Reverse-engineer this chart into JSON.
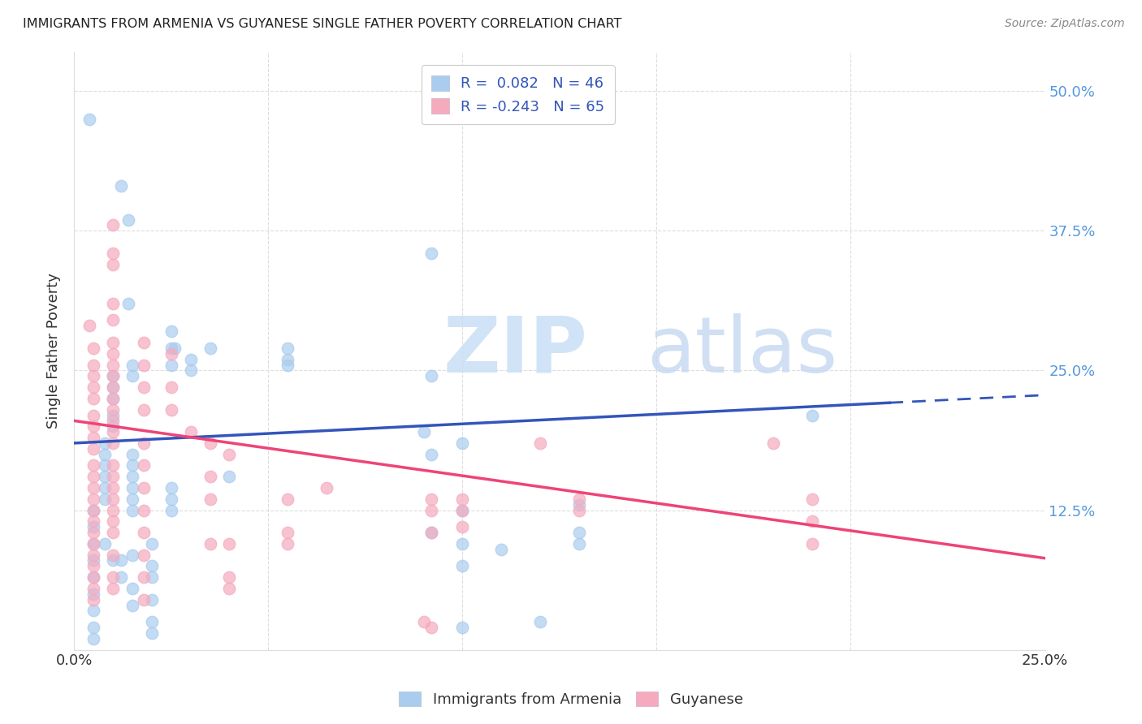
{
  "title": "IMMIGRANTS FROM ARMENIA VS GUYANESE SINGLE FATHER POVERTY CORRELATION CHART",
  "source": "Source: ZipAtlas.com",
  "ylabel": "Single Father Poverty",
  "ytick_labels": [
    "50.0%",
    "37.5%",
    "25.0%",
    "12.5%"
  ],
  "ytick_values": [
    0.5,
    0.375,
    0.25,
    0.125
  ],
  "xlim": [
    0.0,
    0.25
  ],
  "ylim": [
    0.0,
    0.535
  ],
  "armenia_color": "#aaccee",
  "guyanese_color": "#f5aabe",
  "armenia_line_color": "#3355bb",
  "guyanese_line_color": "#ee4477",
  "armenia_line_solid_end": 0.21,
  "armenia_line_x0": 0.0,
  "armenia_line_y0": 0.185,
  "armenia_line_x1": 0.25,
  "armenia_line_y1": 0.228,
  "guyanese_line_x0": 0.0,
  "guyanese_line_y0": 0.205,
  "guyanese_line_x1": 0.25,
  "guyanese_line_y1": 0.082,
  "armenia_scatter": [
    [
      0.004,
      0.475
    ],
    [
      0.012,
      0.415
    ],
    [
      0.014,
      0.385
    ],
    [
      0.014,
      0.31
    ],
    [
      0.025,
      0.285
    ],
    [
      0.025,
      0.27
    ],
    [
      0.025,
      0.255
    ],
    [
      0.026,
      0.27
    ],
    [
      0.03,
      0.26
    ],
    [
      0.03,
      0.25
    ],
    [
      0.01,
      0.245
    ],
    [
      0.01,
      0.235
    ],
    [
      0.01,
      0.225
    ],
    [
      0.01,
      0.21
    ],
    [
      0.01,
      0.2
    ],
    [
      0.015,
      0.245
    ],
    [
      0.015,
      0.255
    ],
    [
      0.035,
      0.27
    ],
    [
      0.092,
      0.355
    ],
    [
      0.055,
      0.27
    ],
    [
      0.055,
      0.255
    ],
    [
      0.055,
      0.26
    ],
    [
      0.092,
      0.245
    ],
    [
      0.09,
      0.195
    ],
    [
      0.1,
      0.185
    ],
    [
      0.092,
      0.175
    ],
    [
      0.008,
      0.185
    ],
    [
      0.008,
      0.175
    ],
    [
      0.008,
      0.165
    ],
    [
      0.008,
      0.155
    ],
    [
      0.008,
      0.145
    ],
    [
      0.008,
      0.135
    ],
    [
      0.015,
      0.175
    ],
    [
      0.015,
      0.165
    ],
    [
      0.015,
      0.155
    ],
    [
      0.015,
      0.145
    ],
    [
      0.015,
      0.135
    ],
    [
      0.015,
      0.125
    ],
    [
      0.025,
      0.145
    ],
    [
      0.025,
      0.135
    ],
    [
      0.025,
      0.125
    ],
    [
      0.04,
      0.155
    ],
    [
      0.005,
      0.095
    ],
    [
      0.005,
      0.08
    ],
    [
      0.005,
      0.065
    ],
    [
      0.005,
      0.05
    ],
    [
      0.092,
      0.105
    ],
    [
      0.13,
      0.13
    ],
    [
      0.13,
      0.105
    ],
    [
      0.13,
      0.095
    ],
    [
      0.12,
      0.025
    ],
    [
      0.11,
      0.09
    ],
    [
      0.1,
      0.125
    ],
    [
      0.1,
      0.095
    ],
    [
      0.1,
      0.075
    ],
    [
      0.1,
      0.02
    ],
    [
      0.19,
      0.21
    ],
    [
      0.005,
      0.035
    ],
    [
      0.005,
      0.02
    ],
    [
      0.005,
      0.01
    ],
    [
      0.005,
      0.125
    ],
    [
      0.005,
      0.11
    ],
    [
      0.01,
      0.08
    ],
    [
      0.008,
      0.095
    ],
    [
      0.012,
      0.08
    ],
    [
      0.012,
      0.065
    ],
    [
      0.015,
      0.085
    ],
    [
      0.015,
      0.055
    ],
    [
      0.015,
      0.04
    ],
    [
      0.02,
      0.095
    ],
    [
      0.02,
      0.075
    ],
    [
      0.02,
      0.065
    ],
    [
      0.02,
      0.045
    ],
    [
      0.02,
      0.025
    ],
    [
      0.02,
      0.015
    ]
  ],
  "guyanese_scatter": [
    [
      0.004,
      0.29
    ],
    [
      0.005,
      0.27
    ],
    [
      0.005,
      0.255
    ],
    [
      0.005,
      0.245
    ],
    [
      0.005,
      0.235
    ],
    [
      0.005,
      0.225
    ],
    [
      0.005,
      0.21
    ],
    [
      0.005,
      0.2
    ],
    [
      0.005,
      0.19
    ],
    [
      0.005,
      0.18
    ],
    [
      0.005,
      0.165
    ],
    [
      0.005,
      0.155
    ],
    [
      0.005,
      0.145
    ],
    [
      0.005,
      0.135
    ],
    [
      0.005,
      0.125
    ],
    [
      0.005,
      0.115
    ],
    [
      0.005,
      0.105
    ],
    [
      0.005,
      0.095
    ],
    [
      0.005,
      0.085
    ],
    [
      0.005,
      0.075
    ],
    [
      0.005,
      0.065
    ],
    [
      0.005,
      0.055
    ],
    [
      0.005,
      0.045
    ],
    [
      0.01,
      0.38
    ],
    [
      0.01,
      0.355
    ],
    [
      0.01,
      0.345
    ],
    [
      0.01,
      0.31
    ],
    [
      0.01,
      0.295
    ],
    [
      0.01,
      0.275
    ],
    [
      0.01,
      0.265
    ],
    [
      0.01,
      0.255
    ],
    [
      0.01,
      0.245
    ],
    [
      0.01,
      0.235
    ],
    [
      0.01,
      0.225
    ],
    [
      0.01,
      0.215
    ],
    [
      0.01,
      0.205
    ],
    [
      0.01,
      0.195
    ],
    [
      0.01,
      0.185
    ],
    [
      0.01,
      0.165
    ],
    [
      0.01,
      0.155
    ],
    [
      0.01,
      0.145
    ],
    [
      0.01,
      0.135
    ],
    [
      0.01,
      0.125
    ],
    [
      0.01,
      0.115
    ],
    [
      0.01,
      0.105
    ],
    [
      0.01,
      0.085
    ],
    [
      0.01,
      0.065
    ],
    [
      0.01,
      0.055
    ],
    [
      0.018,
      0.275
    ],
    [
      0.018,
      0.255
    ],
    [
      0.018,
      0.235
    ],
    [
      0.018,
      0.215
    ],
    [
      0.018,
      0.185
    ],
    [
      0.018,
      0.165
    ],
    [
      0.018,
      0.145
    ],
    [
      0.018,
      0.125
    ],
    [
      0.018,
      0.105
    ],
    [
      0.018,
      0.085
    ],
    [
      0.018,
      0.065
    ],
    [
      0.018,
      0.045
    ],
    [
      0.025,
      0.265
    ],
    [
      0.025,
      0.235
    ],
    [
      0.025,
      0.215
    ],
    [
      0.03,
      0.195
    ],
    [
      0.035,
      0.185
    ],
    [
      0.035,
      0.155
    ],
    [
      0.035,
      0.135
    ],
    [
      0.035,
      0.095
    ],
    [
      0.04,
      0.175
    ],
    [
      0.04,
      0.095
    ],
    [
      0.04,
      0.065
    ],
    [
      0.04,
      0.055
    ],
    [
      0.055,
      0.135
    ],
    [
      0.055,
      0.105
    ],
    [
      0.055,
      0.095
    ],
    [
      0.065,
      0.145
    ],
    [
      0.092,
      0.135
    ],
    [
      0.092,
      0.125
    ],
    [
      0.092,
      0.105
    ],
    [
      0.1,
      0.135
    ],
    [
      0.1,
      0.125
    ],
    [
      0.1,
      0.11
    ],
    [
      0.12,
      0.185
    ],
    [
      0.13,
      0.135
    ],
    [
      0.13,
      0.125
    ],
    [
      0.18,
      0.185
    ],
    [
      0.19,
      0.135
    ],
    [
      0.19,
      0.115
    ],
    [
      0.19,
      0.095
    ],
    [
      0.09,
      0.025
    ],
    [
      0.092,
      0.02
    ]
  ]
}
